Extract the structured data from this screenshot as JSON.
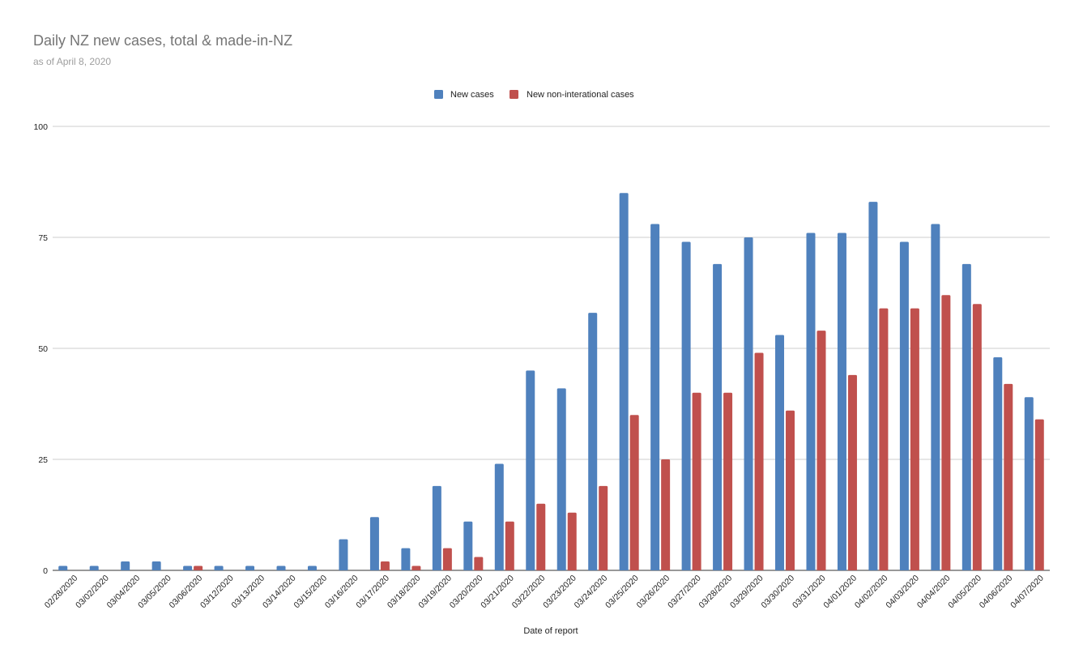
{
  "chart_data": {
    "type": "bar",
    "title": "Daily NZ new cases, total & made-in-NZ",
    "subtitle": "as of April 8, 2020",
    "xlabel": "Date of report",
    "ylabel": "",
    "ylim": [
      0,
      100
    ],
    "yticks": [
      0,
      25,
      50,
      75,
      100
    ],
    "grid": true,
    "legend_position": "top-center",
    "categories": [
      "02/28/2020",
      "03/02/2020",
      "03/04/2020",
      "03/05/2020",
      "03/06/2020",
      "03/12/2020",
      "03/13/2020",
      "03/14/2020",
      "03/15/2020",
      "03/16/2020",
      "03/17/2020",
      "03/18/2020",
      "03/19/2020",
      "03/20/2020",
      "03/21/2020",
      "03/22/2020",
      "03/23/2020",
      "03/24/2020",
      "03/25/2020",
      "03/26/2020",
      "03/27/2020",
      "03/28/2020",
      "03/29/2020",
      "03/30/2020",
      "03/31/2020",
      "04/01/2020",
      "04/02/2020",
      "04/03/2020",
      "04/04/2020",
      "04/05/2020",
      "04/06/2020",
      "04/07/2020"
    ],
    "series": [
      {
        "name": "New cases",
        "color": "#4f81bd",
        "values": [
          1,
          1,
          2,
          2,
          1,
          1,
          1,
          1,
          1,
          7,
          12,
          5,
          19,
          11,
          24,
          45,
          41,
          58,
          85,
          78,
          74,
          69,
          75,
          53,
          76,
          76,
          83,
          74,
          78,
          69,
          48,
          39
        ]
      },
      {
        "name": "New non-interational cases",
        "color": "#c0504d",
        "values": [
          0,
          0,
          0,
          0,
          1,
          0,
          0,
          0,
          0,
          0,
          2,
          1,
          5,
          3,
          11,
          15,
          13,
          19,
          35,
          25,
          40,
          40,
          49,
          36,
          54,
          44,
          59,
          59,
          62,
          60,
          42,
          34
        ]
      }
    ]
  }
}
